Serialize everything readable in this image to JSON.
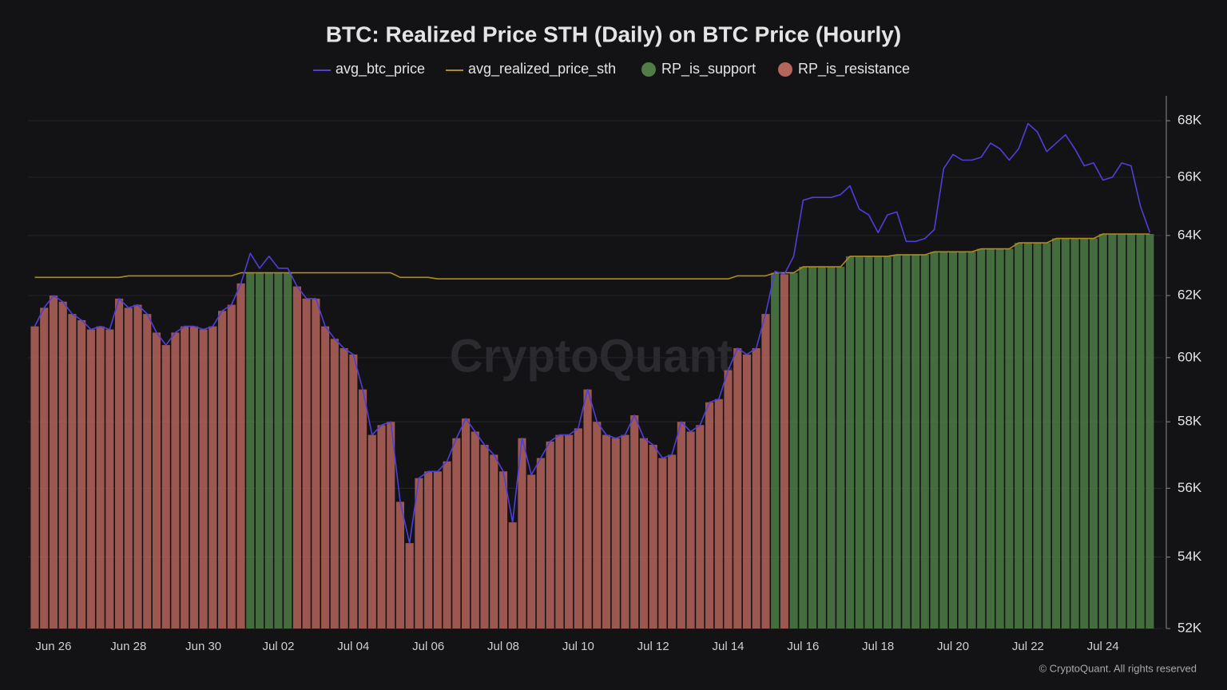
{
  "chart_data": {
    "type": "combo",
    "title": "BTC: Realized Price STH (Daily) on BTC Price (Hourly)",
    "watermark": "CryptoQuant",
    "copyright": "© CryptoQuant. All rights reserved",
    "log_scale": true,
    "grid": true,
    "ylim": [
      52000,
      68900
    ],
    "yticks": [
      {
        "value": 52000,
        "label": "52K"
      },
      {
        "value": 54000,
        "label": "54K"
      },
      {
        "value": 56000,
        "label": "56K"
      },
      {
        "value": 58000,
        "label": "58K"
      },
      {
        "value": 60000,
        "label": "60K"
      },
      {
        "value": 62000,
        "label": "62K"
      },
      {
        "value": 64000,
        "label": "64K"
      },
      {
        "value": 66000,
        "label": "66K"
      },
      {
        "value": 68000,
        "label": "68K"
      }
    ],
    "categories": [
      null,
      null,
      "Jun 26",
      null,
      null,
      null,
      null,
      null,
      null,
      null,
      "Jun 28",
      null,
      null,
      null,
      null,
      null,
      null,
      null,
      "Jun 30",
      null,
      null,
      null,
      null,
      null,
      null,
      null,
      "Jul 02",
      null,
      null,
      null,
      null,
      null,
      null,
      null,
      "Jul 04",
      null,
      null,
      null,
      null,
      null,
      null,
      null,
      "Jul 06",
      null,
      null,
      null,
      null,
      null,
      null,
      null,
      "Jul 08",
      null,
      null,
      null,
      null,
      null,
      null,
      null,
      "Jul 10",
      null,
      null,
      null,
      null,
      null,
      null,
      null,
      "Jul 12",
      null,
      null,
      null,
      null,
      null,
      null,
      null,
      "Jul 14",
      null,
      null,
      null,
      null,
      null,
      null,
      null,
      "Jul 16",
      null,
      null,
      null,
      null,
      null,
      null,
      null,
      "Jul 18",
      null,
      null,
      null,
      null,
      null,
      null,
      null,
      "Jul 20",
      null,
      null,
      null,
      null,
      null,
      null,
      null,
      "Jul 22",
      null,
      null,
      null,
      null,
      null,
      null,
      null,
      "Jul 24",
      null,
      null,
      null,
      null,
      null
    ],
    "series": [
      {
        "name": "avg_btc_price",
        "type": "line",
        "color": "#4f3fd8",
        "values": [
          61000,
          61600,
          62000,
          61800,
          61400,
          61200,
          60900,
          61000,
          60900,
          61900,
          61600,
          61700,
          61400,
          60800,
          60400,
          60800,
          61000,
          61000,
          60900,
          61000,
          61500,
          61700,
          62400,
          63400,
          62900,
          63300,
          62900,
          62900,
          62300,
          61900,
          61900,
          61000,
          60600,
          60300,
          60100,
          59000,
          57600,
          57900,
          58000,
          55600,
          54400,
          56300,
          56500,
          56500,
          56800,
          57500,
          58100,
          57700,
          57300,
          57000,
          56500,
          55000,
          57500,
          56400,
          56900,
          57400,
          57600,
          57600,
          57800,
          59000,
          58000,
          57600,
          57500,
          57600,
          58200,
          57500,
          57300,
          56900,
          57000,
          58000,
          57700,
          57900,
          58600,
          58700,
          59600,
          60300,
          60100,
          60300,
          61400,
          62800,
          62700,
          63300,
          65200,
          65300,
          65300,
          65300,
          65400,
          65700,
          64900,
          64700,
          64100,
          64700,
          64800,
          63800,
          63800,
          63900,
          64200,
          66300,
          66800,
          66600,
          66600,
          66700,
          67200,
          67000,
          66600,
          67000,
          67900,
          67600,
          66900,
          67200,
          67500,
          67000,
          66400,
          66500,
          65900,
          66000,
          66500,
          66400,
          65000,
          64100
        ]
      },
      {
        "name": "avg_realized_price_sth",
        "type": "line",
        "color": "#b08c1c",
        "values": [
          62600,
          62600,
          62600,
          62600,
          62600,
          62600,
          62600,
          62600,
          62600,
          62600,
          62650,
          62650,
          62650,
          62650,
          62650,
          62650,
          62650,
          62650,
          62650,
          62650,
          62650,
          62650,
          62750,
          62750,
          62750,
          62750,
          62750,
          62750,
          62750,
          62750,
          62750,
          62750,
          62750,
          62750,
          62750,
          62750,
          62750,
          62750,
          62750,
          62600,
          62600,
          62600,
          62600,
          62550,
          62550,
          62550,
          62550,
          62550,
          62550,
          62550,
          62550,
          62550,
          62550,
          62550,
          62550,
          62550,
          62550,
          62550,
          62550,
          62550,
          62550,
          62550,
          62550,
          62550,
          62550,
          62550,
          62550,
          62550,
          62550,
          62550,
          62550,
          62550,
          62550,
          62550,
          62550,
          62650,
          62650,
          62650,
          62650,
          62750,
          62750,
          62750,
          62950,
          62950,
          62950,
          62950,
          62950,
          63300,
          63300,
          63300,
          63300,
          63300,
          63350,
          63350,
          63350,
          63350,
          63450,
          63450,
          63450,
          63450,
          63450,
          63550,
          63550,
          63550,
          63550,
          63750,
          63750,
          63750,
          63750,
          63900,
          63900,
          63900,
          63900,
          63900,
          64050,
          64050,
          64050,
          64050,
          64050,
          64050
        ]
      },
      {
        "name": "RP_is_support",
        "type": "bar",
        "color": "#4f7d45",
        "values": [
          null,
          null,
          null,
          null,
          null,
          null,
          null,
          null,
          null,
          null,
          null,
          null,
          null,
          null,
          null,
          null,
          null,
          null,
          null,
          null,
          null,
          null,
          null,
          62750,
          62750,
          62750,
          62750,
          62750,
          null,
          null,
          null,
          null,
          null,
          null,
          null,
          null,
          null,
          null,
          null,
          null,
          null,
          null,
          null,
          null,
          null,
          null,
          null,
          null,
          null,
          null,
          null,
          null,
          null,
          null,
          null,
          null,
          null,
          null,
          null,
          null,
          null,
          null,
          null,
          null,
          null,
          null,
          null,
          null,
          null,
          null,
          null,
          null,
          null,
          null,
          null,
          null,
          null,
          null,
          null,
          62750,
          null,
          62750,
          62950,
          62950,
          62950,
          62950,
          62950,
          63300,
          63300,
          63300,
          63300,
          63300,
          63350,
          63350,
          63350,
          63350,
          63450,
          63450,
          63450,
          63450,
          63450,
          63550,
          63550,
          63550,
          63550,
          63750,
          63750,
          63750,
          63750,
          63900,
          63900,
          63900,
          63900,
          63900,
          64050,
          64050,
          64050,
          64050,
          64050,
          64050
        ]
      },
      {
        "name": "RP_is_resistance",
        "type": "bar",
        "color": "#b5655b",
        "values": [
          61000,
          61600,
          62000,
          61800,
          61400,
          61200,
          60900,
          61000,
          60900,
          61900,
          61600,
          61700,
          61400,
          60800,
          60400,
          60800,
          61000,
          61000,
          60900,
          61000,
          61500,
          61700,
          62400,
          null,
          null,
          null,
          null,
          null,
          62300,
          61900,
          61900,
          61000,
          60600,
          60300,
          60100,
          59000,
          57600,
          57900,
          58000,
          55600,
          54400,
          56300,
          56500,
          56500,
          56800,
          57500,
          58100,
          57700,
          57300,
          57000,
          56500,
          55000,
          57500,
          56400,
          56900,
          57400,
          57600,
          57600,
          57800,
          59000,
          58000,
          57600,
          57500,
          57600,
          58200,
          57500,
          57300,
          56900,
          57000,
          58000,
          57700,
          57900,
          58600,
          58700,
          59600,
          60300,
          60100,
          60300,
          61400,
          null,
          62700,
          null,
          null,
          null,
          null,
          null,
          null,
          null,
          null,
          null,
          null,
          null,
          null,
          null,
          null,
          null,
          null,
          null,
          null,
          null,
          null,
          null,
          null,
          null,
          null,
          null,
          null,
          null,
          null,
          null,
          null,
          null,
          null,
          null,
          null,
          null,
          null,
          null,
          null,
          null
        ]
      }
    ]
  }
}
